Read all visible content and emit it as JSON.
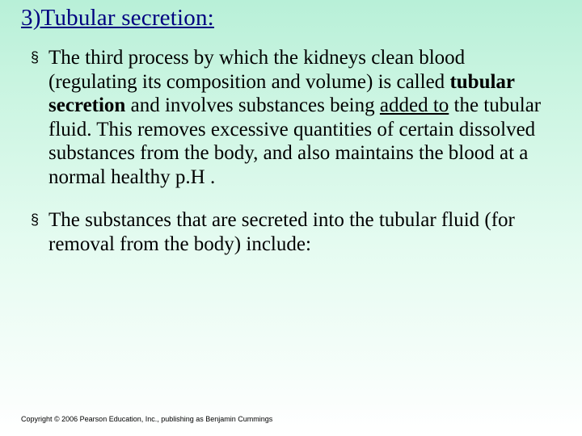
{
  "slide": {
    "background_gradient": {
      "from": "#b8f0d8",
      "mid1": "#c8f4e0",
      "mid2": "#e4fbf0",
      "to": "#ffffff"
    },
    "title": {
      "text": "3)Tubular secretion:",
      "color": "#000080",
      "fontsize": 29,
      "underline": true
    },
    "bullets": [
      {
        "marker": "§",
        "segments": [
          {
            "text": "The third process by which the kidneys clean blood (regulating its composition and volume) is called "
          },
          {
            "text": "tubular secretion",
            "bold": true
          },
          {
            "text": " and involves substances being "
          },
          {
            "text": "added to",
            "underline": true
          },
          {
            "text": " the tubular fluid. This removes excessive quantities of certain dissolved substances from the body, and also maintains the blood at a normal healthy p.H ."
          }
        ]
      },
      {
        "marker": "§",
        "segments": [
          {
            "text": "The substances that are secreted into the tubular fluid (for removal from the body) include:"
          }
        ]
      }
    ],
    "body_fontsize": 25,
    "body_color": "#000000",
    "copyright": "Copyright © 2006 Pearson Education, Inc., publishing as Benjamin Cummings",
    "copyright_fontsize": 9
  }
}
